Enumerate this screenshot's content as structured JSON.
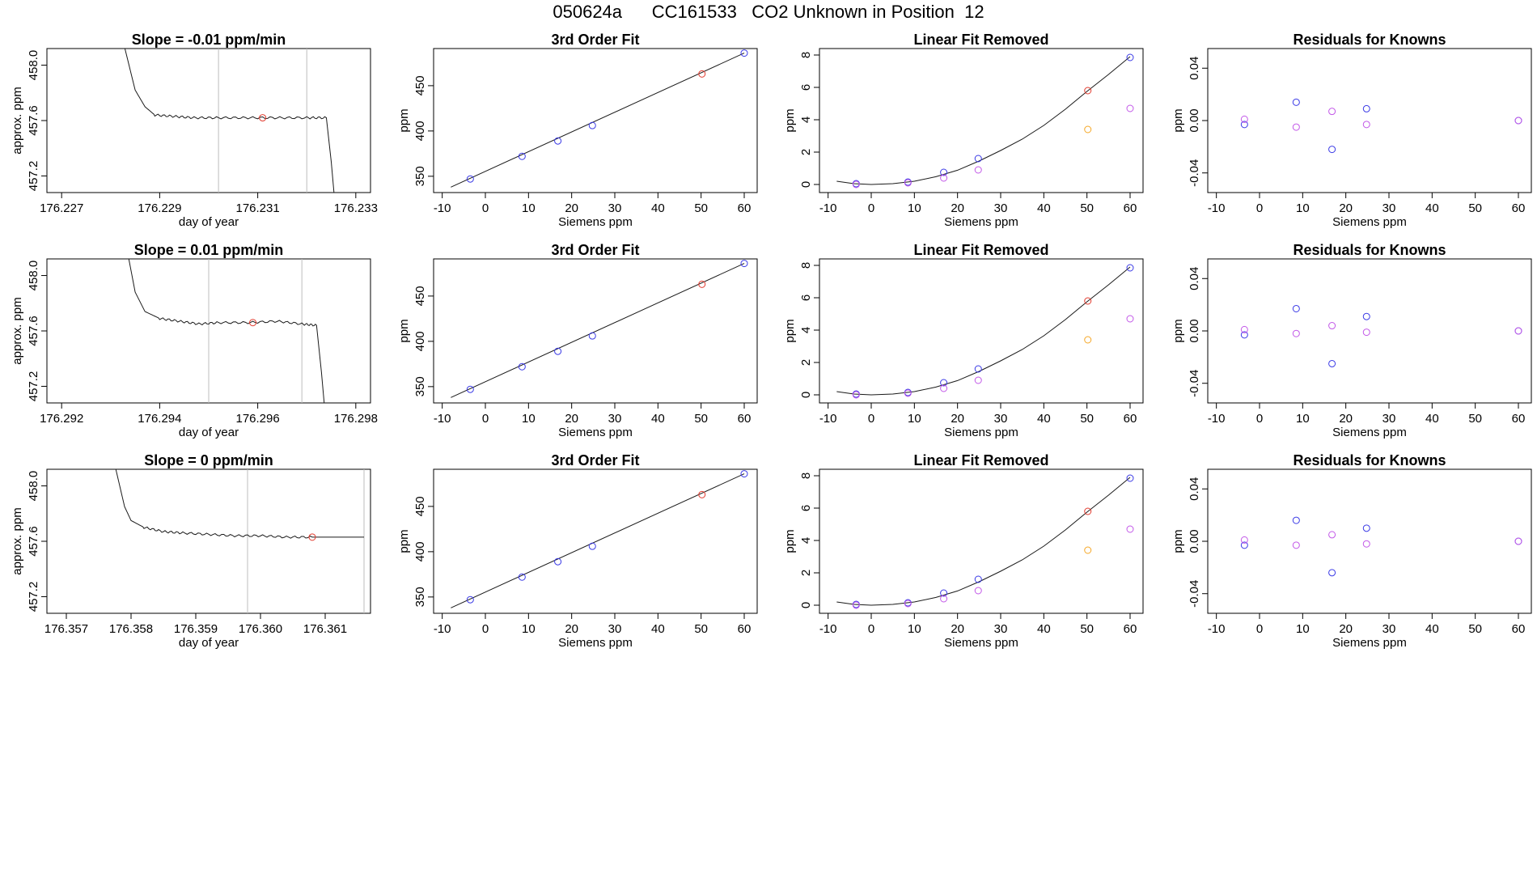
{
  "page": {
    "title": "050624a      CC161533   CO2 Unknown in Position  12"
  },
  "colors": {
    "axis": "#000000",
    "line": "#1a1a1a",
    "vline": "#bdbdbd",
    "blue": "#3a3ae6",
    "red": "#e23b2e",
    "magenta": "#c257e8",
    "orange": "#f5a623"
  },
  "chart_data": [
    {
      "type": "line",
      "panel": "time-series",
      "row": 1,
      "title": "Slope =  -0.01  ppm/min",
      "xlabel": "day of year",
      "ylabel": "approx. ppm",
      "xlim": [
        176.2267,
        176.2333
      ],
      "ylim": [
        457.08,
        458.12
      ],
      "xticks": [
        176.227,
        176.229,
        176.231,
        176.233
      ],
      "xtick_labels": [
        "176.227",
        "176.229",
        "176.231",
        "176.233"
      ],
      "yticks": [
        457.2,
        457.6,
        458.0
      ],
      "ytick_labels": [
        "457.2",
        "457.6",
        "458.0"
      ],
      "vlines": [
        176.2302,
        176.232
      ],
      "series": [
        {
          "name": "trace",
          "x": [
            176.2282,
            176.2285,
            176.2287,
            176.2289,
            176.2293,
            176.2297,
            176.2302,
            176.2308,
            176.2314,
            176.232,
            176.2324,
            176.2325,
            176.2326
          ],
          "y": [
            458.25,
            457.82,
            457.7,
            457.64,
            457.63,
            457.62,
            457.62,
            457.62,
            457.62,
            457.62,
            457.62,
            457.3,
            456.9
          ]
        },
        {
          "name": "mean",
          "x": [
            176.2311
          ],
          "y": [
            457.62
          ],
          "color": "red"
        }
      ]
    },
    {
      "type": "scatter",
      "panel": "3rd-order-fit",
      "row": 1,
      "title": "3rd Order Fit",
      "xlabel": "Siemens ppm",
      "ylabel": "ppm",
      "xlim": [
        -12,
        63
      ],
      "ylim": [
        332,
        491
      ],
      "xticks": [
        -10,
        0,
        10,
        20,
        30,
        40,
        50,
        60
      ],
      "xtick_labels": [
        "-10",
        "0",
        "10",
        "20",
        "30",
        "40",
        "50",
        "60"
      ],
      "yticks": [
        350,
        400,
        450
      ],
      "ytick_labels": [
        "350",
        "400",
        "450"
      ],
      "fit_line": {
        "x": [
          -8,
          60
        ],
        "y": [
          338,
          486
        ]
      },
      "series": [
        {
          "name": "knowns",
          "color": "blue",
          "x": [
            -3.5,
            8.5,
            16.8,
            24.8,
            60
          ],
          "y": [
            347,
            372,
            389,
            406,
            486
          ]
        },
        {
          "name": "unknown",
          "color": "red",
          "x": [
            50.2
          ],
          "y": [
            463
          ]
        }
      ]
    },
    {
      "type": "scatter",
      "panel": "linear-fit-removed",
      "row": 1,
      "title": "Linear Fit Removed",
      "xlabel": "Siemens ppm",
      "ylabel": "ppm",
      "xlim": [
        -12,
        63
      ],
      "ylim": [
        -0.5,
        8.4
      ],
      "xticks": [
        -10,
        0,
        10,
        20,
        30,
        40,
        50,
        60
      ],
      "xtick_labels": [
        "-10",
        "0",
        "10",
        "20",
        "30",
        "40",
        "50",
        "60"
      ],
      "yticks": [
        0,
        2,
        4,
        6,
        8
      ],
      "ytick_labels": [
        "0",
        "2",
        "4",
        "6",
        "8"
      ],
      "curve": {
        "x": [
          -8,
          -4,
          0,
          5,
          10,
          15,
          20,
          25,
          30,
          35,
          40,
          45,
          50,
          55,
          60
        ],
        "y": [
          0.2,
          0.05,
          0.0,
          0.05,
          0.2,
          0.48,
          0.88,
          1.45,
          2.1,
          2.8,
          3.65,
          4.65,
          5.75,
          6.8,
          7.9
        ]
      },
      "series": [
        {
          "name": "knowns",
          "color": "blue",
          "x": [
            -3.5,
            8.5,
            16.8,
            24.8,
            60
          ],
          "y": [
            0.05,
            0.15,
            0.75,
            1.6,
            7.85
          ]
        },
        {
          "name": "residual-knowns",
          "color": "magenta",
          "x": [
            -3.5,
            8.5,
            16.8,
            24.8,
            60
          ],
          "y": [
            0.0,
            0.1,
            0.4,
            0.9,
            4.7
          ]
        },
        {
          "name": "unknown",
          "color": "red",
          "x": [
            50.2
          ],
          "y": [
            5.8
          ]
        },
        {
          "name": "unknown-linear",
          "color": "orange",
          "x": [
            50.2
          ],
          "y": [
            3.4
          ]
        }
      ]
    },
    {
      "type": "scatter",
      "panel": "residuals",
      "row": 1,
      "title": "Residuals for Knowns",
      "xlabel": "Siemens ppm",
      "ylabel": "ppm",
      "xlim": [
        -12,
        63
      ],
      "ylim": [
        -0.055,
        0.055
      ],
      "xticks": [
        -10,
        0,
        10,
        20,
        30,
        40,
        50,
        60
      ],
      "xtick_labels": [
        "-10",
        "0",
        "10",
        "20",
        "30",
        "40",
        "50",
        "60"
      ],
      "yticks": [
        -0.04,
        0.0,
        0.04
      ],
      "ytick_labels": [
        "-0.04",
        "0.00",
        "0.04"
      ],
      "series": [
        {
          "name": "blue",
          "color": "blue",
          "x": [
            -3.5,
            8.5,
            16.8,
            24.8,
            60
          ],
          "y": [
            -0.003,
            0.014,
            -0.022,
            0.009,
            0.0
          ]
        },
        {
          "name": "magenta",
          "color": "magenta",
          "x": [
            -3.5,
            8.5,
            16.8,
            24.8,
            60
          ],
          "y": [
            0.001,
            -0.005,
            0.007,
            -0.003,
            0.0
          ]
        }
      ]
    },
    {
      "type": "line",
      "panel": "time-series",
      "row": 2,
      "title": "Slope =  0.01  ppm/min",
      "xlabel": "day of year",
      "ylabel": "approx. ppm",
      "xlim": [
        176.2917,
        176.2983
      ],
      "ylim": [
        457.08,
        458.12
      ],
      "xticks": [
        176.292,
        176.294,
        176.296,
        176.298
      ],
      "xtick_labels": [
        "176.292",
        "176.294",
        "176.296",
        "176.298"
      ],
      "vlines": [
        176.295,
        176.2969
      ],
      "yticks": [
        457.2,
        457.6,
        458.0
      ],
      "ytick_labels": [
        "457.2",
        "457.6",
        "458.0"
      ],
      "series": [
        {
          "name": "trace",
          "x": [
            176.2933,
            176.2935,
            176.2937,
            176.294,
            176.2944,
            176.2948,
            176.2952,
            176.2958,
            176.2964,
            176.2969,
            176.2972,
            176.2973,
            176.2974
          ],
          "y": [
            458.25,
            457.88,
            457.74,
            457.69,
            457.67,
            457.65,
            457.66,
            457.66,
            457.67,
            457.65,
            457.64,
            457.3,
            456.9
          ]
        },
        {
          "name": "mean",
          "x": [
            176.2959
          ],
          "y": [
            457.66
          ],
          "color": "red"
        }
      ]
    },
    {
      "type": "scatter",
      "panel": "3rd-order-fit",
      "row": 2,
      "title": "3rd Order Fit",
      "xlabel": "Siemens ppm",
      "ylabel": "ppm",
      "xlim": [
        -12,
        63
      ],
      "ylim": [
        332,
        491
      ],
      "xticks": [
        -10,
        0,
        10,
        20,
        30,
        40,
        50,
        60
      ],
      "xtick_labels": [
        "-10",
        "0",
        "10",
        "20",
        "30",
        "40",
        "50",
        "60"
      ],
      "yticks": [
        350,
        400,
        450
      ],
      "ytick_labels": [
        "350",
        "400",
        "450"
      ],
      "fit_line": {
        "x": [
          -8,
          60
        ],
        "y": [
          338,
          486
        ]
      },
      "series": [
        {
          "name": "knowns",
          "color": "blue",
          "x": [
            -3.5,
            8.5,
            16.8,
            24.8,
            60
          ],
          "y": [
            347,
            372,
            389,
            406,
            486
          ]
        },
        {
          "name": "unknown",
          "color": "red",
          "x": [
            50.2
          ],
          "y": [
            463
          ]
        }
      ]
    },
    {
      "type": "scatter",
      "panel": "linear-fit-removed",
      "row": 2,
      "title": "Linear Fit Removed",
      "xlabel": "Siemens ppm",
      "ylabel": "ppm",
      "xlim": [
        -12,
        63
      ],
      "ylim": [
        -0.5,
        8.4
      ],
      "xticks": [
        -10,
        0,
        10,
        20,
        30,
        40,
        50,
        60
      ],
      "xtick_labels": [
        "-10",
        "0",
        "10",
        "20",
        "30",
        "40",
        "50",
        "60"
      ],
      "yticks": [
        0,
        2,
        4,
        6,
        8
      ],
      "ytick_labels": [
        "0",
        "2",
        "4",
        "6",
        "8"
      ],
      "curve": {
        "x": [
          -8,
          -4,
          0,
          5,
          10,
          15,
          20,
          25,
          30,
          35,
          40,
          45,
          50,
          55,
          60
        ],
        "y": [
          0.2,
          0.05,
          0.0,
          0.05,
          0.2,
          0.48,
          0.88,
          1.45,
          2.1,
          2.8,
          3.65,
          4.65,
          5.75,
          6.8,
          7.9
        ]
      },
      "series": [
        {
          "name": "knowns",
          "color": "blue",
          "x": [
            -3.5,
            8.5,
            16.8,
            24.8,
            60
          ],
          "y": [
            0.05,
            0.15,
            0.75,
            1.6,
            7.85
          ]
        },
        {
          "name": "residual-knowns",
          "color": "magenta",
          "x": [
            -3.5,
            8.5,
            16.8,
            24.8,
            60
          ],
          "y": [
            0.0,
            0.1,
            0.4,
            0.9,
            4.7
          ]
        },
        {
          "name": "unknown",
          "color": "red",
          "x": [
            50.2
          ],
          "y": [
            5.8
          ]
        },
        {
          "name": "unknown-linear",
          "color": "orange",
          "x": [
            50.2
          ],
          "y": [
            3.4
          ]
        }
      ]
    },
    {
      "type": "scatter",
      "panel": "residuals",
      "row": 2,
      "title": "Residuals for Knowns",
      "xlabel": "Siemens ppm",
      "ylabel": "ppm",
      "xlim": [
        -12,
        63
      ],
      "ylim": [
        -0.055,
        0.055
      ],
      "xticks": [
        -10,
        0,
        10,
        20,
        30,
        40,
        50,
        60
      ],
      "xtick_labels": [
        "-10",
        "0",
        "10",
        "20",
        "30",
        "40",
        "50",
        "60"
      ],
      "yticks": [
        -0.04,
        0.0,
        0.04
      ],
      "ytick_labels": [
        "-0.04",
        "0.00",
        "0.04"
      ],
      "series": [
        {
          "name": "blue",
          "color": "blue",
          "x": [
            -3.5,
            8.5,
            16.8,
            24.8,
            60
          ],
          "y": [
            -0.003,
            0.017,
            -0.025,
            0.011,
            0.0
          ]
        },
        {
          "name": "magenta",
          "color": "magenta",
          "x": [
            -3.5,
            8.5,
            16.8,
            24.8,
            60
          ],
          "y": [
            0.001,
            -0.002,
            0.004,
            -0.001,
            0.0
          ]
        }
      ]
    },
    {
      "type": "line",
      "panel": "time-series",
      "row": 3,
      "title": "Slope =  0  ppm/min",
      "xlabel": "day of year",
      "ylabel": "approx. ppm",
      "xlim": [
        176.3567,
        176.3617
      ],
      "ylim": [
        457.08,
        458.12
      ],
      "xticks": [
        176.357,
        176.358,
        176.359,
        176.36,
        176.361
      ],
      "xtick_labels": [
        "176.357",
        "176.358",
        "176.359",
        "176.360",
        "176.361"
      ],
      "vlines": [
        176.3598,
        176.3616
      ],
      "yticks": [
        457.2,
        457.6,
        458.0
      ],
      "ytick_labels": [
        "457.2",
        "457.6",
        "458.0"
      ],
      "series": [
        {
          "name": "trace",
          "x": [
            176.3577,
            176.3579,
            176.358,
            176.3582,
            176.3585,
            176.3588,
            176.3592,
            176.3596,
            176.36,
            176.3604,
            176.3608,
            176.3612,
            176.3616
          ],
          "y": [
            458.25,
            457.85,
            457.75,
            457.7,
            457.67,
            457.66,
            457.65,
            457.64,
            457.64,
            457.63,
            457.63,
            457.63,
            457.63
          ]
        },
        {
          "name": "mean",
          "x": [
            176.3608
          ],
          "y": [
            457.63
          ],
          "color": "red"
        }
      ]
    },
    {
      "type": "scatter",
      "panel": "3rd-order-fit",
      "row": 3,
      "title": "3rd Order Fit",
      "xlabel": "Siemens ppm",
      "ylabel": "ppm",
      "xlim": [
        -12,
        63
      ],
      "ylim": [
        332,
        491
      ],
      "xticks": [
        -10,
        0,
        10,
        20,
        30,
        40,
        50,
        60
      ],
      "xtick_labels": [
        "-10",
        "0",
        "10",
        "20",
        "30",
        "40",
        "50",
        "60"
      ],
      "yticks": [
        350,
        400,
        450
      ],
      "ytick_labels": [
        "350",
        "400",
        "450"
      ],
      "fit_line": {
        "x": [
          -8,
          60
        ],
        "y": [
          338,
          486
        ]
      },
      "series": [
        {
          "name": "knowns",
          "color": "blue",
          "x": [
            -3.5,
            8.5,
            16.8,
            24.8,
            60
          ],
          "y": [
            347,
            372,
            389,
            406,
            486
          ]
        },
        {
          "name": "unknown",
          "color": "red",
          "x": [
            50.2
          ],
          "y": [
            463
          ]
        }
      ]
    },
    {
      "type": "scatter",
      "panel": "linear-fit-removed",
      "row": 3,
      "title": "Linear Fit Removed",
      "xlabel": "Siemens ppm",
      "ylabel": "ppm",
      "xlim": [
        -12,
        63
      ],
      "ylim": [
        -0.5,
        8.4
      ],
      "xticks": [
        -10,
        0,
        10,
        20,
        30,
        40,
        50,
        60
      ],
      "xtick_labels": [
        "-10",
        "0",
        "10",
        "20",
        "30",
        "40",
        "50",
        "60"
      ],
      "yticks": [
        0,
        2,
        4,
        6,
        8
      ],
      "ytick_labels": [
        "0",
        "2",
        "4",
        "6",
        "8"
      ],
      "curve": {
        "x": [
          -8,
          -4,
          0,
          5,
          10,
          15,
          20,
          25,
          30,
          35,
          40,
          45,
          50,
          55,
          60
        ],
        "y": [
          0.2,
          0.05,
          0.0,
          0.05,
          0.2,
          0.48,
          0.88,
          1.45,
          2.1,
          2.8,
          3.65,
          4.65,
          5.75,
          6.8,
          7.9
        ]
      },
      "series": [
        {
          "name": "knowns",
          "color": "blue",
          "x": [
            -3.5,
            8.5,
            16.8,
            24.8,
            60
          ],
          "y": [
            0.05,
            0.15,
            0.75,
            1.6,
            7.85
          ]
        },
        {
          "name": "residual-knowns",
          "color": "magenta",
          "x": [
            -3.5,
            8.5,
            16.8,
            24.8,
            60
          ],
          "y": [
            0.0,
            0.1,
            0.4,
            0.9,
            4.7
          ]
        },
        {
          "name": "unknown",
          "color": "red",
          "x": [
            50.2
          ],
          "y": [
            5.8
          ]
        },
        {
          "name": "unknown-linear",
          "color": "orange",
          "x": [
            50.2
          ],
          "y": [
            3.4
          ]
        }
      ]
    },
    {
      "type": "scatter",
      "panel": "residuals",
      "row": 3,
      "title": "Residuals for Knowns",
      "xlabel": "Siemens ppm",
      "ylabel": "ppm",
      "xlim": [
        -12,
        63
      ],
      "ylim": [
        -0.055,
        0.055
      ],
      "xticks": [
        -10,
        0,
        10,
        20,
        30,
        40,
        50,
        60
      ],
      "xtick_labels": [
        "-10",
        "0",
        "10",
        "20",
        "30",
        "40",
        "50",
        "60"
      ],
      "yticks": [
        -0.04,
        0.0,
        0.04
      ],
      "ytick_labels": [
        "-0.04",
        "0.00",
        "0.04"
      ],
      "series": [
        {
          "name": "blue",
          "color": "blue",
          "x": [
            -3.5,
            8.5,
            16.8,
            24.8,
            60
          ],
          "y": [
            -0.003,
            0.016,
            -0.024,
            0.01,
            0.0
          ]
        },
        {
          "name": "magenta",
          "color": "magenta",
          "x": [
            -3.5,
            8.5,
            16.8,
            24.8,
            60
          ],
          "y": [
            0.001,
            -0.003,
            0.005,
            -0.002,
            0.0
          ]
        }
      ]
    }
  ]
}
